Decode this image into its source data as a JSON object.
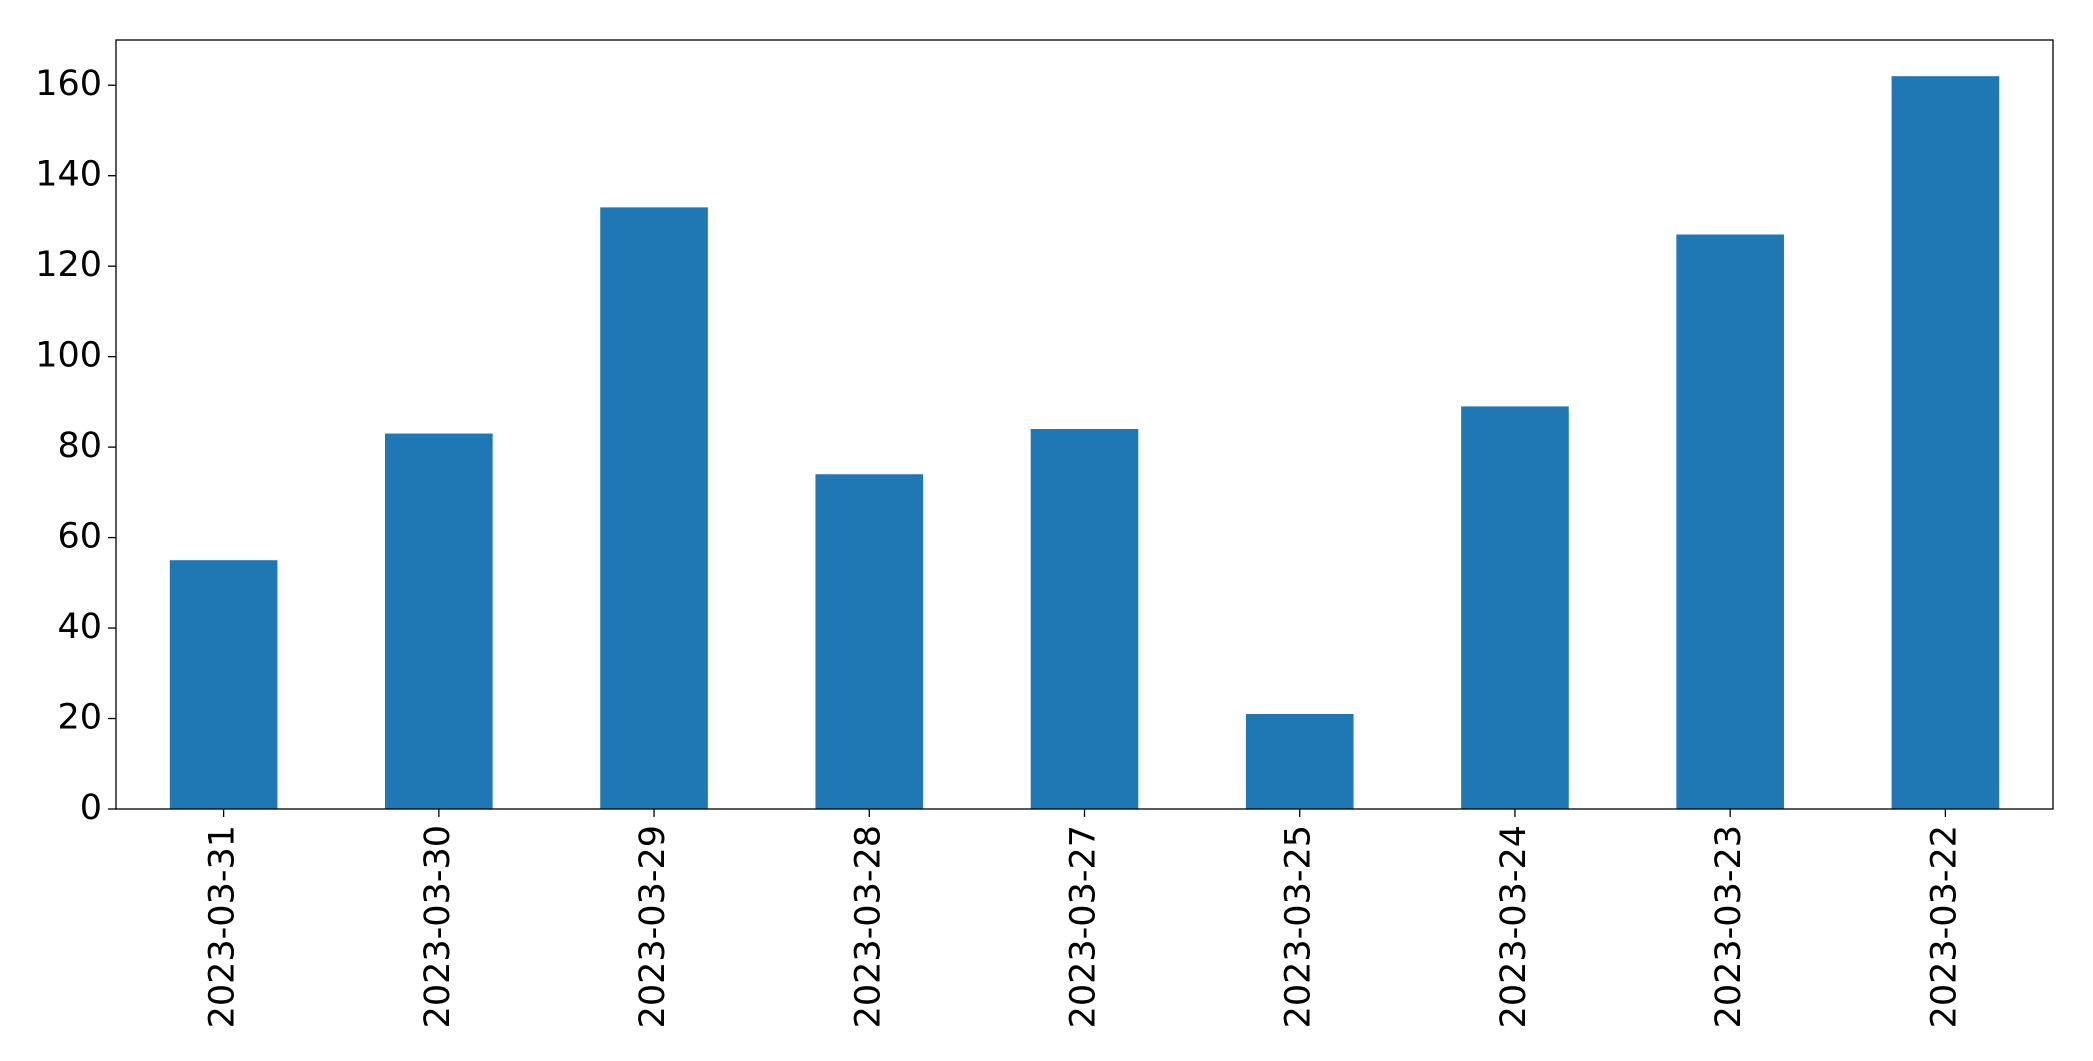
{
  "chart_data": {
    "type": "bar",
    "categories": [
      "2023-03-31",
      "2023-03-30",
      "2023-03-29",
      "2023-03-28",
      "2023-03-27",
      "2023-03-25",
      "2023-03-24",
      "2023-03-23",
      "2023-03-22"
    ],
    "values": [
      55,
      83,
      133,
      74,
      84,
      21,
      89,
      127,
      162
    ],
    "color": "#1f77b4",
    "ylim": [
      0,
      170
    ],
    "yticks": [
      0,
      20,
      40,
      60,
      80,
      100,
      120,
      140,
      160
    ],
    "grid": false
  }
}
